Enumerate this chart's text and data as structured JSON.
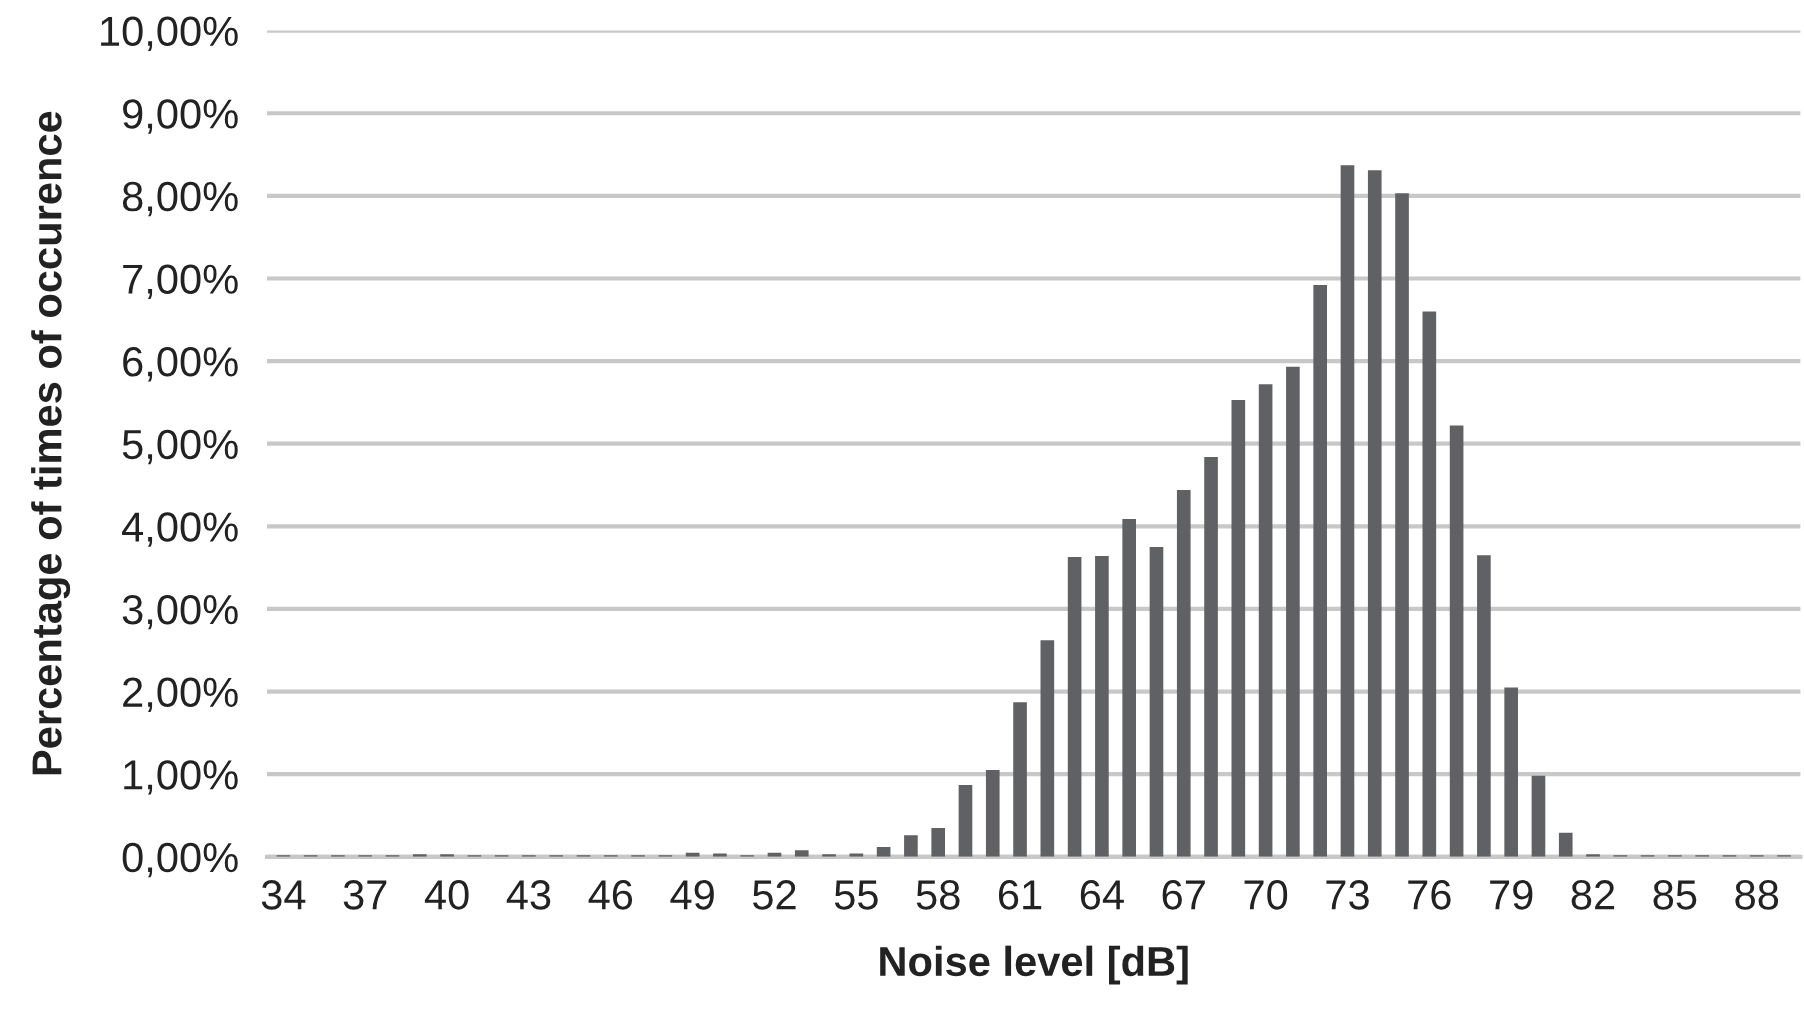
{
  "chart_data": {
    "type": "bar",
    "xlabel": "Noise level [dB]",
    "ylabel": "Percentage of times of occurence",
    "categories": [
      "34",
      null,
      null,
      "37",
      null,
      null,
      "40",
      null,
      null,
      "43",
      null,
      null,
      "46",
      null,
      null,
      "49",
      null,
      null,
      "52",
      null,
      null,
      "55",
      null,
      null,
      "58",
      null,
      null,
      "61",
      null,
      null,
      "64",
      null,
      null,
      "67",
      null,
      null,
      "70",
      null,
      null,
      "73",
      null,
      null,
      "76",
      null,
      null,
      "79",
      null,
      null,
      "82",
      null,
      null,
      "85",
      null,
      null,
      "88",
      null
    ],
    "values": [
      0.02,
      0.02,
      0.02,
      0.02,
      0.02,
      0.03,
      0.03,
      0.02,
      0.02,
      0.02,
      0.02,
      0.02,
      0.02,
      0.02,
      0.02,
      0.05,
      0.04,
      0.02,
      0.05,
      0.08,
      0.03,
      0.04,
      0.12,
      0.26,
      0.35,
      0.87,
      1.05,
      1.87,
      2.62,
      3.63,
      3.64,
      4.09,
      3.75,
      4.44,
      4.84,
      5.53,
      5.72,
      5.93,
      6.92,
      8.37,
      8.31,
      8.03,
      6.6,
      5.22,
      3.65,
      2.05,
      0.98,
      0.29,
      0.03,
      0.02,
      0.02,
      0.02,
      0.02,
      0.02,
      0.02,
      0.02
    ],
    "color": "#606164",
    "ylim": [
      0,
      10
    ],
    "yticks": [
      {
        "value": 0,
        "label": "0,00%"
      },
      {
        "value": 1,
        "label": "1,00%"
      },
      {
        "value": 2,
        "label": "2,00%"
      },
      {
        "value": 3,
        "label": "3,00%"
      },
      {
        "value": 4,
        "label": "4,00%"
      },
      {
        "value": 5,
        "label": "5,00%"
      },
      {
        "value": 6,
        "label": "6,00%"
      },
      {
        "value": 7,
        "label": "7,00%"
      },
      {
        "value": 8,
        "label": "8,00%"
      },
      {
        "value": 9,
        "label": "9,00%"
      },
      {
        "value": 10,
        "label": "10,00%"
      }
    ],
    "grid": "y"
  }
}
